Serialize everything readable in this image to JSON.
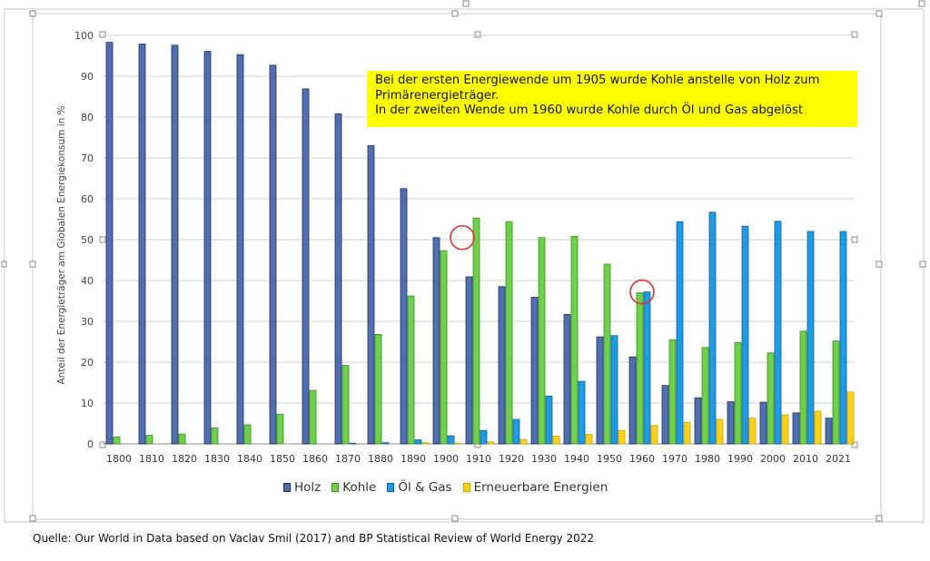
{
  "colors": {
    "holz": "#4f6fb0",
    "kohle": "#6fd14a",
    "oel_gas": "#1f9be6",
    "erneuerbar": "#ffd21a",
    "annotation_bg": "#ffff00",
    "circle": "#e03030",
    "grid": "#d0d0d0"
  },
  "annotation": {
    "line1": "Bei der ersten Energiewende um 1905 wurde Kohle anstelle von Holz zum",
    "line2": "Primärenergieträger.",
    "line3": "In der zweiten Wende um 1960 wurde Kohle durch Öl und Gas abgelöst"
  },
  "source": "Quelle: Our World in Data based on Vaclav Smil (2017) and BP Statistical Review of World Energy 2022",
  "chart_data": {
    "type": "bar",
    "ylabel": "Anteil der Energieträger am Globalen Energiekonsum in %",
    "xlabel": "",
    "ylim": [
      0,
      100
    ],
    "yticks": [
      0,
      10,
      20,
      30,
      40,
      50,
      60,
      70,
      80,
      90,
      100
    ],
    "grid": true,
    "legend_position": "bottom",
    "categories": [
      "1800",
      "1810",
      "1820",
      "1830",
      "1840",
      "1850",
      "1860",
      "1870",
      "1880",
      "1890",
      "1900",
      "1910",
      "1920",
      "1930",
      "1940",
      "1950",
      "1960",
      "1970",
      "1980",
      "1990",
      "2000",
      "2010",
      "2021"
    ],
    "series": [
      {
        "name": "Holz",
        "values": [
          98.3,
          97.9,
          97.6,
          96.1,
          95.3,
          92.7,
          86.9,
          80.8,
          73.0,
          62.5,
          50.5,
          40.9,
          38.5,
          35.9,
          31.7,
          26.2,
          21.3,
          14.3,
          11.3,
          10.3,
          10.2,
          7.6,
          6.3
        ]
      },
      {
        "name": "Kohle",
        "values": [
          1.7,
          2.1,
          2.4,
          3.9,
          4.7,
          7.3,
          13.1,
          19.2,
          26.8,
          36.2,
          47.3,
          55.3,
          54.4,
          50.5,
          50.8,
          44.0,
          37.0,
          25.5,
          23.6,
          24.8,
          22.3,
          27.6,
          25.2
        ]
      },
      {
        "name": "Öl & Gas",
        "values": [
          0,
          0,
          0,
          0,
          0,
          0,
          0,
          0.1,
          0.3,
          1.0,
          2.0,
          3.3,
          6.0,
          11.7,
          15.3,
          26.5,
          37.2,
          54.4,
          56.7,
          53.3,
          54.5,
          52.0,
          52.0
        ]
      },
      {
        "name": "Erneuerbare Energien",
        "values": [
          0,
          0,
          0,
          0,
          0,
          0,
          0,
          0,
          0,
          0.3,
          0.2,
          0.5,
          1.1,
          1.9,
          2.3,
          3.3,
          4.5,
          5.3,
          6.0,
          6.3,
          7.1,
          8.0,
          12.7
        ]
      }
    ],
    "highlights": [
      {
        "label": "",
        "x_year": 1905,
        "y": 50.5
      },
      {
        "label": "",
        "x_year": 1960,
        "y": 37.2
      }
    ]
  }
}
